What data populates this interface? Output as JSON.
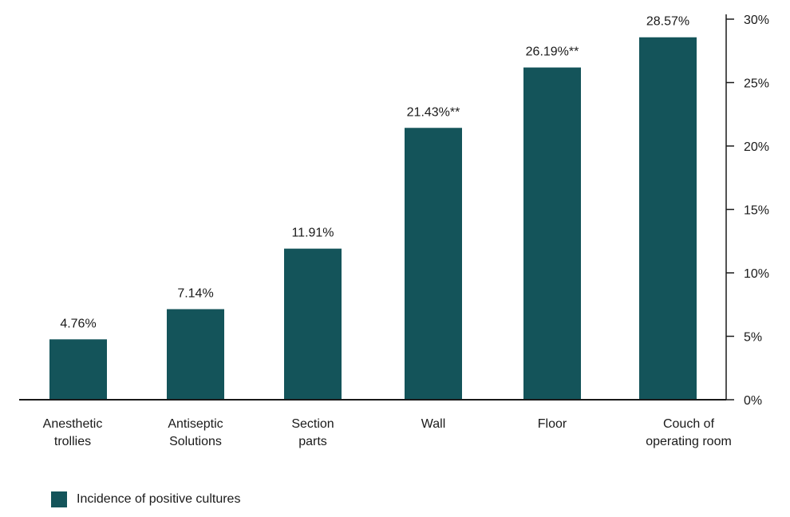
{
  "chart_data": {
    "type": "bar",
    "categories": [
      [
        "Anesthetic",
        "trollies"
      ],
      [
        "Antiseptic",
        "Solutions"
      ],
      [
        "Section",
        "parts"
      ],
      [
        "Wall"
      ],
      [
        "Floor"
      ],
      [
        "Couch of",
        "operating room"
      ]
    ],
    "series": [
      {
        "name": "Incidence of positive cultures",
        "values": [
          4.76,
          7.14,
          11.91,
          21.43,
          26.19,
          28.57
        ],
        "value_labels": [
          "4.76%",
          "7.14%",
          "11.91%",
          "21.43%**",
          "26.19%**",
          "28.57%"
        ]
      }
    ],
    "y_axis": {
      "position": "right",
      "ylim": [
        0,
        30
      ],
      "ticks": [
        0,
        5,
        10,
        15,
        20,
        25,
        30
      ],
      "tick_labels": [
        "0%",
        "5%",
        "10%",
        "15%",
        "20%",
        "25%",
        "30%"
      ]
    },
    "grid": false,
    "legend": "bottom-left",
    "colors": {
      "bar": "#14545a",
      "axis": "#1a1a1a"
    }
  }
}
